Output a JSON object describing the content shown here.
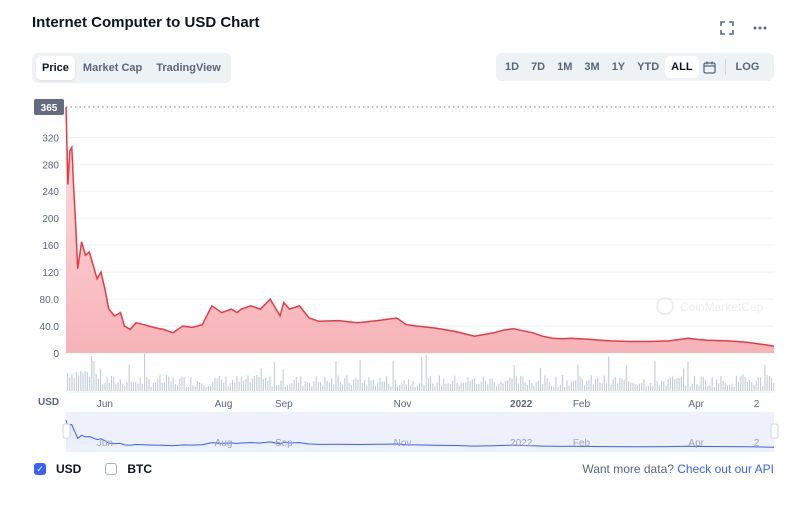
{
  "header": {
    "title": "Internet Computer to USD Chart",
    "expand_icon": "expand-icon",
    "more_icon": "more-icon"
  },
  "tabs": [
    {
      "label": "Price",
      "active": true
    },
    {
      "label": "Market Cap",
      "active": false
    },
    {
      "label": "TradingView",
      "active": false
    }
  ],
  "ranges": [
    {
      "label": "1D"
    },
    {
      "label": "7D"
    },
    {
      "label": "1M"
    },
    {
      "label": "3M"
    },
    {
      "label": "1Y"
    },
    {
      "label": "YTD"
    },
    {
      "label": "ALL",
      "active": true
    }
  ],
  "log_label": "LOG",
  "calendar_icon": "calendar-icon",
  "currency_label": "USD",
  "watermark": "CoinMarketCap",
  "colors": {
    "line": "#ea3943",
    "fill": "#f6b3b8",
    "volume": "#a6b0c3",
    "navigator_line": "#3861fb",
    "navigator_fill": "#e8ecfb",
    "accent": "#3861fb"
  },
  "chart_data": {
    "type": "area",
    "title": "Internet Computer to USD Chart",
    "current_price_label": "365",
    "y_ticks": [
      "0",
      "40.0",
      "80.0",
      "120",
      "160",
      "200",
      "240",
      "280",
      "320"
    ],
    "ylim": [
      0,
      365
    ],
    "x_tick_labels": [
      "Jun",
      "Aug",
      "Sep",
      "Nov",
      "2022",
      "Feb",
      "Apr",
      "2"
    ],
    "x_tick_days": [
      20,
      81,
      112,
      173,
      234,
      265,
      324,
      355
    ],
    "xlim": [
      0,
      364
    ],
    "grid": true,
    "series": [
      {
        "x": [
          0,
          1,
          2,
          3,
          4,
          5,
          6,
          8,
          10,
          12,
          14,
          16,
          18,
          20,
          22,
          25,
          28,
          30,
          33,
          36,
          40,
          45,
          50,
          55,
          60,
          65,
          70,
          75,
          80,
          85,
          88,
          90,
          95,
          100,
          105,
          110,
          112,
          115,
          120,
          125,
          130,
          140,
          150,
          160,
          170,
          175,
          180,
          190,
          200,
          210,
          220,
          225,
          230,
          235,
          240,
          245,
          250,
          255,
          260,
          270,
          280,
          290,
          300,
          310,
          320,
          325,
          330,
          340,
          350,
          355,
          360,
          364
        ],
        "y": [
          365,
          250,
          300,
          305,
          240,
          190,
          125,
          165,
          145,
          150,
          130,
          110,
          120,
          95,
          65,
          55,
          60,
          40,
          35,
          45,
          42,
          38,
          35,
          30,
          40,
          38,
          42,
          70,
          60,
          65,
          60,
          65,
          70,
          65,
          80,
          55,
          75,
          65,
          70,
          52,
          47,
          48,
          45,
          48,
          52,
          42,
          40,
          37,
          32,
          25,
          30,
          34,
          36,
          33,
          30,
          25,
          22,
          21,
          22,
          20,
          18,
          17,
          17,
          18,
          22,
          20,
          19,
          18,
          16,
          14,
          12,
          10
        ]
      }
    ]
  },
  "footer": {
    "usd_label": "USD",
    "btc_label": "BTC",
    "api_prefix": "Want more data?",
    "api_link": "Check out our API"
  }
}
